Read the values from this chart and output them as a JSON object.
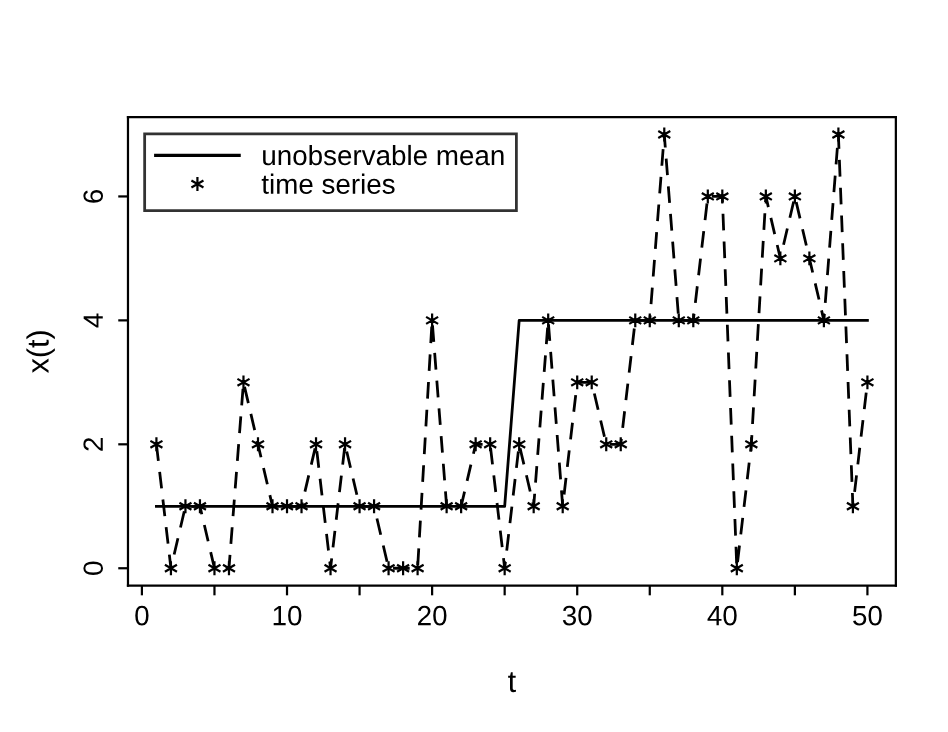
{
  "chart_data": {
    "type": "line",
    "xlabel": "t",
    "ylabel": "x(t)",
    "xlim": [
      -0.96,
      51.96
    ],
    "ylim": [
      -0.28,
      7.28
    ],
    "xticks": [
      0,
      {
        "value": 5,
        "label": null
      },
      10,
      {
        "value": 15,
        "label": null
      },
      20,
      {
        "value": 25,
        "label": null
      },
      30,
      {
        "value": 35,
        "label": null
      },
      40,
      {
        "value": 45,
        "label": null
      },
      50
    ],
    "yticks": [
      0,
      2,
      4,
      6
    ],
    "grid": false,
    "legend": "top left",
    "series": [
      {
        "name": "unobservable mean",
        "color": "#000000",
        "line_style": "solid",
        "marker": "none",
        "x": [
          1,
          25,
          26,
          50
        ],
        "values": [
          1,
          1,
          4,
          4
        ]
      },
      {
        "name": "time series",
        "color": "#000000",
        "line_style": "dashed",
        "marker": "cross",
        "x": [
          1,
          2,
          3,
          4,
          5,
          6,
          7,
          8,
          9,
          10,
          11,
          12,
          13,
          14,
          15,
          16,
          17,
          18,
          19,
          20,
          21,
          22,
          23,
          24,
          25,
          26,
          27,
          28,
          29,
          30,
          31,
          32,
          33,
          34,
          35,
          36,
          37,
          38,
          39,
          40,
          41,
          42,
          43,
          44,
          45,
          46,
          47,
          48,
          49,
          50
        ],
        "values": [
          2,
          0,
          1,
          1,
          0,
          0,
          3,
          2,
          1,
          1,
          1,
          2,
          0,
          2,
          1,
          1,
          0,
          0,
          0,
          4,
          1,
          1,
          2,
          2,
          0,
          2,
          1,
          4,
          1,
          3,
          3,
          2,
          2,
          4,
          4,
          7,
          4,
          4,
          6,
          6,
          0,
          2,
          6,
          5,
          6,
          5,
          4,
          7,
          1,
          3
        ]
      }
    ]
  }
}
